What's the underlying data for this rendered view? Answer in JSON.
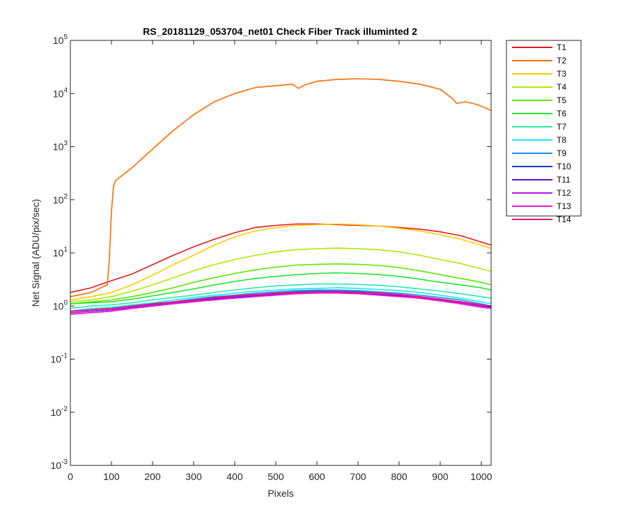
{
  "chart_data": {
    "type": "line",
    "title": "RS_20181129_053704_net01   Check Fiber     Track illuminted 2",
    "xlabel": "Pixels",
    "ylabel": "Net Signal (ADU/pix/sec)",
    "xlim": [
      0,
      1024
    ],
    "ylim": [
      0.001,
      100000
    ],
    "yscale": "log",
    "x_ticks": [
      "0",
      "100",
      "200",
      "300",
      "400",
      "500",
      "600",
      "700",
      "800",
      "900",
      "1000"
    ],
    "y_tick_bases": [
      "10",
      "10",
      "10",
      "10",
      "10",
      "10",
      "10",
      "10",
      "10"
    ],
    "y_tick_exponents": [
      "-3",
      "-2",
      "-1",
      "0",
      "1",
      "2",
      "3",
      "4",
      "5"
    ],
    "grid": false,
    "legend_position": "outside-right-top",
    "series": [
      {
        "name": "T1",
        "color": "#e6171c",
        "x": [
          0,
          50,
          100,
          150,
          200,
          250,
          300,
          350,
          400,
          450,
          500,
          550,
          600,
          650,
          700,
          750,
          800,
          850,
          900,
          950,
          1000,
          1024
        ],
        "y": [
          1.8,
          2.2,
          3,
          4,
          6,
          9,
          13,
          18,
          24,
          30,
          33,
          35,
          35,
          34,
          33,
          32,
          30,
          28,
          25,
          21,
          16,
          14
        ]
      },
      {
        "name": "T2",
        "color": "#ff6a00",
        "x": [
          0,
          50,
          90,
          95,
          100,
          105,
          110,
          150,
          200,
          250,
          300,
          350,
          400,
          450,
          500,
          540,
          555,
          570,
          600,
          650,
          700,
          750,
          800,
          850,
          900,
          930,
          940,
          960,
          980,
          1000,
          1024
        ],
        "y": [
          1.5,
          1.8,
          2.5,
          8,
          60,
          180,
          230,
          400,
          900,
          2000,
          4000,
          7000,
          10000,
          13000,
          14000,
          15000,
          12500,
          14500,
          17000,
          18500,
          19000,
          18500,
          17000,
          15000,
          12000,
          8000,
          6500,
          7000,
          6500,
          5800,
          4800
        ]
      },
      {
        "name": "T3",
        "color": "#ffcc00",
        "x": [
          0,
          50,
          100,
          150,
          200,
          250,
          300,
          350,
          400,
          450,
          500,
          550,
          600,
          650,
          700,
          750,
          800,
          850,
          900,
          950,
          1000,
          1024
        ],
        "y": [
          1.3,
          1.5,
          1.8,
          2.5,
          3.8,
          6,
          9,
          14,
          20,
          26,
          30,
          33,
          34,
          35,
          34,
          32,
          29,
          26,
          22,
          18,
          14,
          12
        ]
      },
      {
        "name": "T4",
        "color": "#aaea00",
        "x": [
          0,
          50,
          100,
          150,
          200,
          250,
          300,
          350,
          400,
          450,
          500,
          550,
          600,
          650,
          700,
          750,
          800,
          850,
          900,
          950,
          1000,
          1024
        ],
        "y": [
          1.2,
          1.3,
          1.5,
          1.9,
          2.5,
          3.4,
          4.6,
          6,
          7.5,
          9,
          10.5,
          11.5,
          12,
          12.3,
          12,
          11.5,
          10.5,
          9,
          7.5,
          6.3,
          5,
          4.5
        ]
      },
      {
        "name": "T5",
        "color": "#5ce600",
        "x": [
          0,
          50,
          100,
          150,
          200,
          250,
          300,
          350,
          400,
          450,
          500,
          550,
          600,
          650,
          700,
          750,
          800,
          850,
          900,
          950,
          1000,
          1024
        ],
        "y": [
          1.1,
          1.2,
          1.3,
          1.5,
          1.8,
          2.2,
          2.8,
          3.4,
          4.1,
          4.8,
          5.4,
          5.9,
          6.1,
          6.2,
          6.1,
          5.8,
          5.3,
          4.6,
          3.9,
          3.3,
          2.8,
          2.5
        ]
      },
      {
        "name": "T6",
        "color": "#1ee632",
        "x": [
          0,
          50,
          100,
          150,
          200,
          250,
          300,
          350,
          400,
          450,
          500,
          550,
          600,
          650,
          700,
          750,
          800,
          850,
          900,
          950,
          1000,
          1024
        ],
        "y": [
          1.1,
          1.15,
          1.2,
          1.35,
          1.55,
          1.8,
          2.1,
          2.5,
          2.9,
          3.3,
          3.6,
          3.9,
          4.1,
          4.2,
          4.1,
          3.9,
          3.6,
          3.2,
          2.8,
          2.5,
          2.2,
          2
        ]
      },
      {
        "name": "T7",
        "color": "#2ee6b0",
        "x": [
          0,
          50,
          100,
          150,
          200,
          250,
          300,
          350,
          400,
          450,
          500,
          550,
          600,
          650,
          700,
          750,
          800,
          850,
          900,
          950,
          1000,
          1024
        ],
        "y": [
          0.9,
          1,
          1.05,
          1.15,
          1.3,
          1.45,
          1.6,
          1.8,
          2,
          2.2,
          2.4,
          2.5,
          2.6,
          2.6,
          2.55,
          2.45,
          2.3,
          2.1,
          1.9,
          1.7,
          1.5,
          1.4
        ]
      },
      {
        "name": "T8",
        "color": "#18e6f2",
        "x": [
          0,
          50,
          100,
          150,
          200,
          250,
          300,
          350,
          400,
          450,
          500,
          550,
          600,
          650,
          700,
          750,
          800,
          850,
          900,
          950,
          1000,
          1024
        ],
        "y": [
          0.8,
          0.9,
          0.95,
          1.05,
          1.15,
          1.3,
          1.45,
          1.6,
          1.75,
          1.9,
          2,
          2.1,
          2.15,
          2.2,
          2.15,
          2.05,
          1.95,
          1.8,
          1.6,
          1.4,
          1.2,
          1.1
        ]
      },
      {
        "name": "T9",
        "color": "#1a8cff",
        "x": [
          0,
          50,
          100,
          150,
          200,
          250,
          300,
          350,
          400,
          450,
          500,
          550,
          600,
          650,
          700,
          750,
          800,
          850,
          900,
          950,
          1000,
          1024
        ],
        "y": [
          0.8,
          0.85,
          0.9,
          1,
          1.1,
          1.2,
          1.35,
          1.5,
          1.6,
          1.75,
          1.85,
          1.95,
          2,
          2,
          1.95,
          1.85,
          1.75,
          1.6,
          1.45,
          1.3,
          1.1,
          1
        ]
      },
      {
        "name": "T10",
        "color": "#0a3cc8",
        "x": [
          0,
          50,
          100,
          150,
          200,
          250,
          300,
          350,
          400,
          450,
          500,
          550,
          600,
          650,
          700,
          750,
          800,
          850,
          900,
          950,
          1000,
          1024
        ],
        "y": [
          0.75,
          0.8,
          0.85,
          0.95,
          1.05,
          1.15,
          1.3,
          1.4,
          1.55,
          1.65,
          1.75,
          1.85,
          1.9,
          1.9,
          1.85,
          1.75,
          1.65,
          1.5,
          1.35,
          1.2,
          1.05,
          0.95
        ]
      },
      {
        "name": "T11",
        "color": "#4a14e6",
        "x": [
          0,
          50,
          100,
          150,
          200,
          250,
          300,
          350,
          400,
          450,
          500,
          550,
          600,
          650,
          700,
          750,
          800,
          850,
          900,
          950,
          1000,
          1024
        ],
        "y": [
          0.7,
          0.75,
          0.8,
          0.9,
          1,
          1.1,
          1.2,
          1.35,
          1.45,
          1.55,
          1.65,
          1.75,
          1.8,
          1.8,
          1.75,
          1.65,
          1.55,
          1.4,
          1.25,
          1.1,
          0.95,
          0.9
        ]
      },
      {
        "name": "T12",
        "color": "#b414f0",
        "x": [
          0,
          50,
          100,
          150,
          200,
          250,
          300,
          350,
          400,
          450,
          500,
          550,
          600,
          650,
          700,
          750,
          800,
          850,
          900,
          950,
          1000,
          1024
        ],
        "y": [
          0.75,
          0.8,
          0.85,
          0.95,
          1.05,
          1.15,
          1.25,
          1.35,
          1.5,
          1.6,
          1.7,
          1.75,
          1.8,
          1.8,
          1.75,
          1.7,
          1.6,
          1.45,
          1.3,
          1.15,
          1,
          0.95
        ]
      },
      {
        "name": "T13",
        "color": "#f014d2",
        "x": [
          0,
          50,
          100,
          150,
          200,
          250,
          300,
          350,
          400,
          450,
          500,
          550,
          600,
          650,
          700,
          750,
          800,
          850,
          900,
          950,
          1000,
          1024
        ],
        "y": [
          0.7,
          0.75,
          0.8,
          0.9,
          1,
          1.1,
          1.2,
          1.3,
          1.4,
          1.5,
          1.6,
          1.7,
          1.75,
          1.75,
          1.7,
          1.6,
          1.5,
          1.4,
          1.25,
          1.1,
          0.95,
          0.9
        ]
      },
      {
        "name": "T14",
        "color": "#f01464",
        "x": [
          0,
          50,
          100,
          150,
          200,
          250,
          300,
          350,
          400,
          450,
          500,
          550,
          600,
          650,
          700,
          750,
          800,
          850,
          900,
          950,
          1000,
          1024
        ],
        "y": [
          0.8,
          0.85,
          0.9,
          1,
          1.1,
          1.2,
          1.3,
          1.45,
          1.55,
          1.65,
          1.75,
          1.8,
          1.85,
          1.85,
          1.8,
          1.75,
          1.65,
          1.5,
          1.35,
          1.2,
          1.05,
          1
        ]
      }
    ]
  }
}
